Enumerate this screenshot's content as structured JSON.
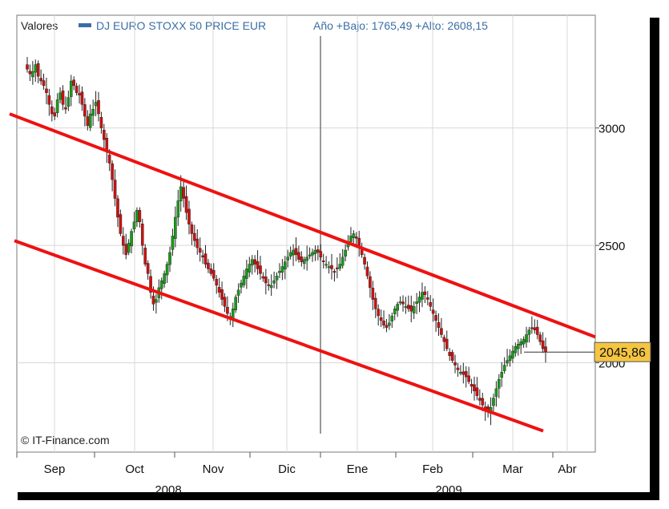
{
  "header": {
    "label": "Valores",
    "series_name": "DJ EURO STOXX 50 PRICE EUR",
    "range_text": "Año +Bajo: 1765,49 +Alto: 2608,15"
  },
  "watermark": "© IT-Finance.com",
  "last_price_label": "2045,86",
  "colors": {
    "up": "#1a9a1a",
    "down": "#cc1111",
    "channel": "#ee1111",
    "grid": "#d8d8d8",
    "series_text": "#3a6ea5",
    "price_box": "#f5c542"
  },
  "chart_data": {
    "type": "candlestick",
    "title": "DJ EURO STOXX 50 PRICE EUR",
    "x_tick_labels": [
      "Sep",
      "Oct",
      "Nov",
      "Dic",
      "Ene",
      "Feb",
      "Mar",
      "Abr"
    ],
    "year_labels": [
      "2008",
      "2009"
    ],
    "y_tick_labels": [
      "3000",
      "2500",
      "2000"
    ],
    "y_ticks": [
      3000,
      2500,
      2000
    ],
    "ylim": [
      1620,
      3480
    ],
    "y_axis_side": "right",
    "grid": true,
    "approximate_daily_closes": [
      3250,
      3230,
      3240,
      3270,
      3220,
      3200,
      3180,
      3150,
      3100,
      3060,
      3050,
      3120,
      3150,
      3100,
      3080,
      3130,
      3200,
      3180,
      3150,
      3140,
      3100,
      3050,
      3010,
      3060,
      3080,
      3110,
      3060,
      3000,
      2950,
      2900,
      2850,
      2780,
      2700,
      2620,
      2550,
      2500,
      2460,
      2510,
      2560,
      2600,
      2650,
      2600,
      2500,
      2420,
      2380,
      2300,
      2250,
      2270,
      2320,
      2350,
      2380,
      2420,
      2470,
      2540,
      2620,
      2690,
      2750,
      2700,
      2640,
      2590,
      2550,
      2520,
      2490,
      2470,
      2450,
      2420,
      2400,
      2380,
      2360,
      2330,
      2300,
      2270,
      2240,
      2210,
      2190,
      2230,
      2280,
      2310,
      2340,
      2370,
      2400,
      2420,
      2440,
      2420,
      2400,
      2380,
      2360,
      2340,
      2330,
      2330,
      2350,
      2370,
      2390,
      2410,
      2430,
      2450,
      2470,
      2480,
      2460,
      2440,
      2430,
      2440,
      2450,
      2460,
      2470,
      2480,
      2470,
      2450,
      2430,
      2420,
      2410,
      2400,
      2390,
      2400,
      2420,
      2450,
      2480,
      2510,
      2540,
      2550,
      2530,
      2500,
      2460,
      2420,
      2370,
      2320,
      2270,
      2230,
      2200,
      2180,
      2160,
      2150,
      2170,
      2200,
      2230,
      2250,
      2260,
      2250,
      2240,
      2230,
      2220,
      2240,
      2260,
      2280,
      2300,
      2290,
      2270,
      2240,
      2210,
      2180,
      2150,
      2120,
      2090,
      2060,
      2030,
      2010,
      1990,
      1970,
      1960,
      1950,
      1940,
      1920,
      1900,
      1880,
      1860,
      1840,
      1820,
      1800,
      1790,
      1810,
      1850,
      1890,
      1930,
      1960,
      1990,
      2010,
      2030,
      2050,
      2070,
      2080,
      2090,
      2100,
      2120,
      2140,
      2150,
      2140,
      2120,
      2090,
      2060,
      2046
    ],
    "channel_upper": {
      "from": 3060,
      "to": 2110
    },
    "channel_lower": {
      "from": 2520,
      "to": 1710
    },
    "last_value": 2045.86,
    "year_low": 1765.49,
    "year_high": 2608.15
  }
}
